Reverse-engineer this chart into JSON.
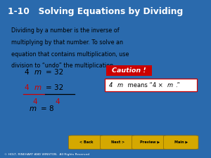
{
  "title": "1-10   Solving Equations by Dividing",
  "title_bg": "#0d1b3e",
  "title_fg": "#ffffff",
  "body_bg": "#ffffff",
  "outer_bg": "#2a6aad",
  "body_text_line1": "Dividing by a number is the inverse of",
  "body_text_line2": "multiplying by that number. To solve an",
  "body_text_line3": "equation that contains multiplication, use",
  "body_text_line4": "division to “undo” the multiplication.",
  "caution_text": "Caution !",
  "caution_bg": "#cc0000",
  "caution_fg": "#ffffff",
  "note_text_pre": "4",
  "note_text_mid": "m means “4 × ",
  "note_text_italic": "m",
  "note_text_post": ".”",
  "note_border": "#cc0000",
  "red_color": "#cc0000",
  "black_color": "#000000",
  "footer_bg": "#000000",
  "nav_bg": "#2a6aad",
  "btn_color": "#d4a800",
  "footer_text": "© HOLT, RINEHART AND WINSTON.  All Rights Reserved"
}
